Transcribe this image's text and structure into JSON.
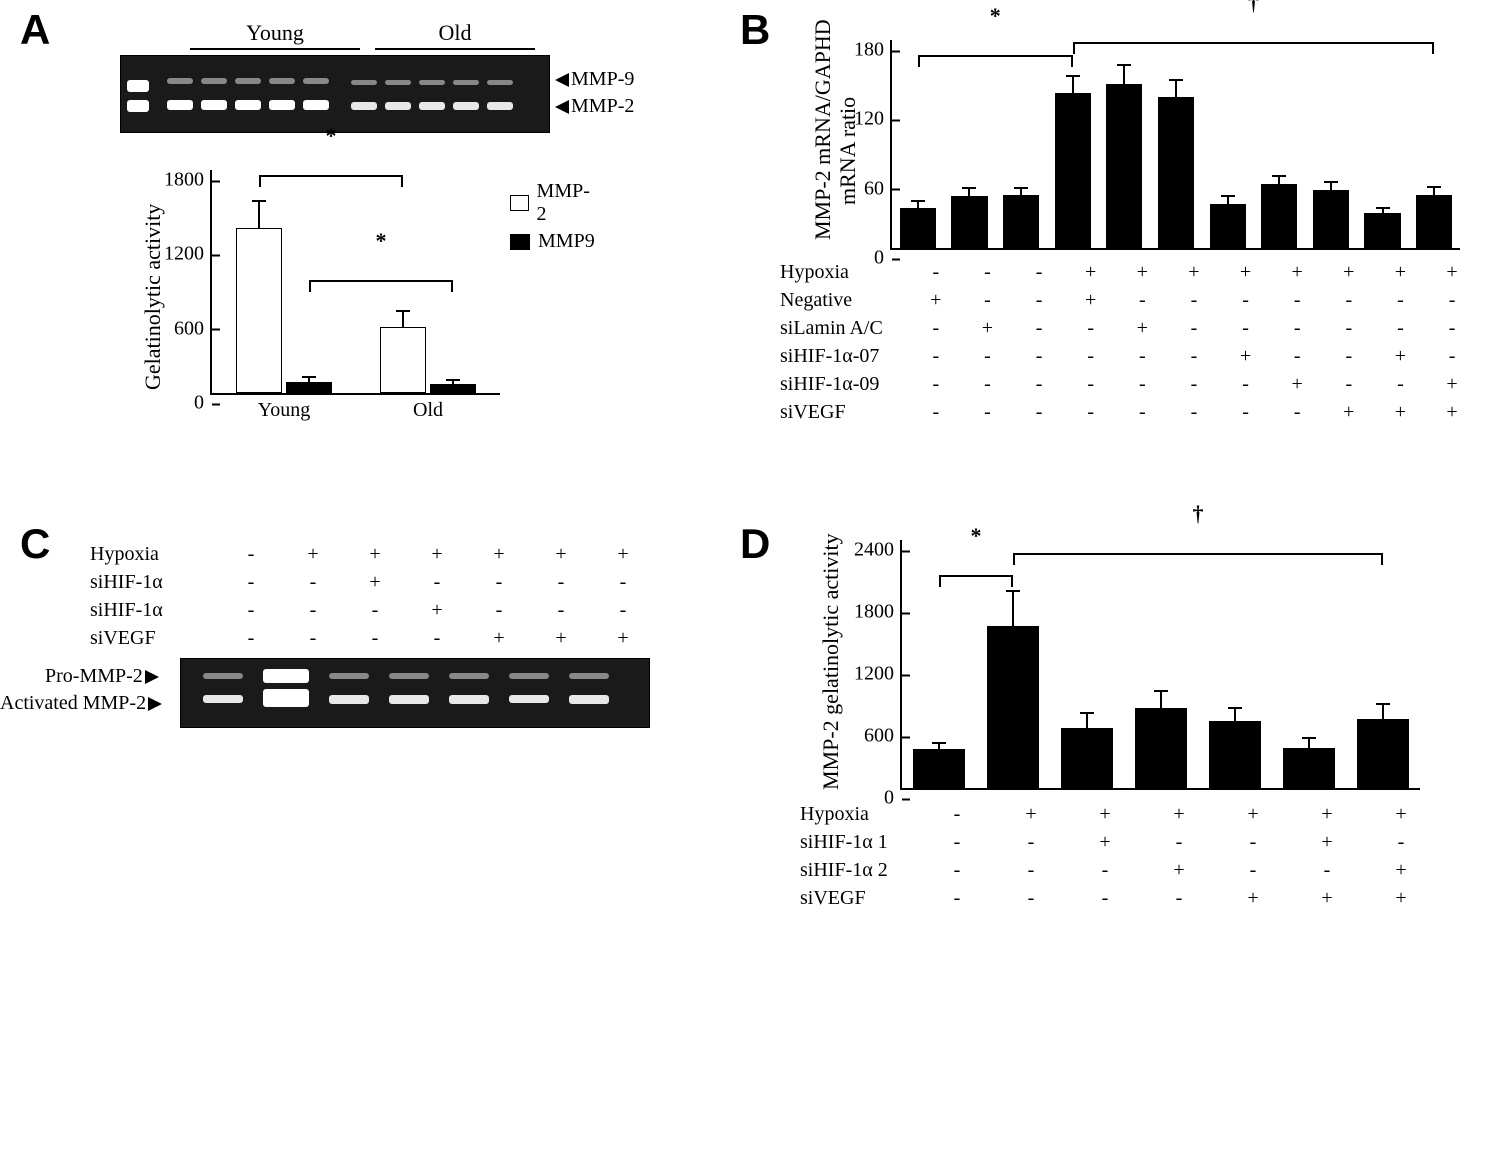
{
  "colors": {
    "bg": "#ffffff",
    "ink": "#000000",
    "bar_black": "#000000",
    "bar_white": "#ffffff",
    "gel_bg": "#1a1a1a",
    "band": "#e8e8e8"
  },
  "typography": {
    "panel_label_fontsize": 42,
    "axis_fontsize": 20,
    "ylabel_fontsize": 22
  },
  "panelA": {
    "label": "A",
    "gel": {
      "group_labels": [
        "Young",
        "Old"
      ],
      "band_labels": [
        "MMP-9",
        "MMP-2"
      ],
      "lanes_young": 5,
      "lanes_old": 5
    },
    "chart": {
      "type": "grouped-bar",
      "ylabel": "Gelatinolytic activity",
      "ylim": [
        0,
        1800
      ],
      "yticks": [
        0,
        600,
        1200,
        1800
      ],
      "categories": [
        "Young",
        "Old"
      ],
      "series": [
        {
          "name": "MMP-2",
          "color": "#ffffff",
          "values": [
            1330,
            530
          ],
          "errors": [
            220,
            130
          ]
        },
        {
          "name": "MMP9",
          "color": "#000000",
          "values": [
            90,
            70
          ],
          "errors": [
            40,
            35
          ]
        }
      ],
      "bar_width": 0.32,
      "sig_markers": [
        {
          "from": "Young-MMP-2",
          "to": "Old-MMP-2",
          "symbol": "*"
        },
        {
          "from": "Young-MMP9",
          "to": "Old-MMP9",
          "symbol": "*"
        }
      ]
    }
  },
  "panelB": {
    "label": "B",
    "chart": {
      "type": "bar",
      "ylabel_line1": "MMP-2 mRNA/GAPHD",
      "ylabel_line2": "mRNA ratio",
      "ylim": [
        0,
        180
      ],
      "yticks": [
        0,
        60,
        120,
        180
      ],
      "bar_color": "#000000",
      "bar_width": 0.7,
      "values": [
        35,
        45,
        46,
        134,
        142,
        131,
        38,
        55,
        50,
        30,
        46
      ],
      "errors": [
        6,
        7,
        6,
        15,
        16,
        14,
        7,
        7,
        7,
        5,
        7
      ]
    },
    "conditions": {
      "labels": [
        "Hypoxia",
        "Negative",
        "siLamin A/C",
        "siHIF-1α-07",
        "siHIF-1α-09",
        "siVEGF"
      ],
      "matrix": [
        [
          "-",
          "-",
          "-",
          "+",
          "+",
          "+",
          "+",
          "+",
          "+",
          "+",
          "+"
        ],
        [
          "+",
          "-",
          "-",
          "+",
          "-",
          "-",
          "-",
          "-",
          "-",
          "-",
          "-"
        ],
        [
          "-",
          "+",
          "-",
          "-",
          "+",
          "-",
          "-",
          "-",
          "-",
          "-",
          "-"
        ],
        [
          "-",
          "-",
          "-",
          "-",
          "-",
          "-",
          "+",
          "-",
          "-",
          "+",
          "-"
        ],
        [
          "-",
          "-",
          "-",
          "-",
          "-",
          "-",
          "-",
          "+",
          "-",
          "-",
          "+"
        ],
        [
          "-",
          "-",
          "-",
          "-",
          "-",
          "-",
          "-",
          "-",
          "+",
          "+",
          "+"
        ]
      ]
    },
    "sig": [
      {
        "from_idx": 1,
        "to_idx": 4,
        "symbol": "*"
      },
      {
        "from_idx": 4,
        "to_idx": 11,
        "symbol": "†"
      }
    ]
  },
  "panelC": {
    "label": "C",
    "conditions": {
      "labels": [
        "Hypoxia",
        "siHIF-1α",
        "siHIF-1α",
        "siVEGF"
      ],
      "matrix": [
        [
          "-",
          "+",
          "+",
          "+",
          "+",
          "+",
          "+"
        ],
        [
          "-",
          "-",
          "+",
          "-",
          "-",
          "-",
          "-"
        ],
        [
          "-",
          "-",
          "-",
          "+",
          "-",
          "-",
          "-"
        ],
        [
          "-",
          "-",
          "-",
          "-",
          "+",
          "+",
          "+"
        ]
      ]
    },
    "gel": {
      "band_labels": [
        "Pro-MMP-2",
        "Activated MMP-2"
      ]
    }
  },
  "panelD": {
    "label": "D",
    "chart": {
      "type": "bar",
      "ylabel": "MMP-2 gelatinolytic activity",
      "ylim": [
        0,
        2400
      ],
      "yticks": [
        0,
        600,
        1200,
        1800,
        2400
      ],
      "bar_color": "#000000",
      "bar_width": 0.7,
      "values": [
        380,
        1570,
        580,
        770,
        650,
        390,
        670
      ],
      "errors": [
        60,
        340,
        150,
        170,
        120,
        90,
        140
      ]
    },
    "conditions": {
      "labels": [
        "Hypoxia",
        "siHIF-1α 1",
        "siHIF-1α 2",
        "siVEGF"
      ],
      "matrix": [
        [
          "-",
          "+",
          "+",
          "+",
          "+",
          "+",
          "+"
        ],
        [
          "-",
          "-",
          "+",
          "-",
          "-",
          "+",
          "-"
        ],
        [
          "-",
          "-",
          "-",
          "+",
          "-",
          "-",
          "+"
        ],
        [
          "-",
          "-",
          "-",
          "-",
          "+",
          "+",
          "+"
        ]
      ]
    },
    "sig": [
      {
        "from_idx": 1,
        "to_idx": 2,
        "symbol": "*"
      },
      {
        "from_idx": 2,
        "to_idx": 7,
        "symbol": "†"
      }
    ]
  }
}
